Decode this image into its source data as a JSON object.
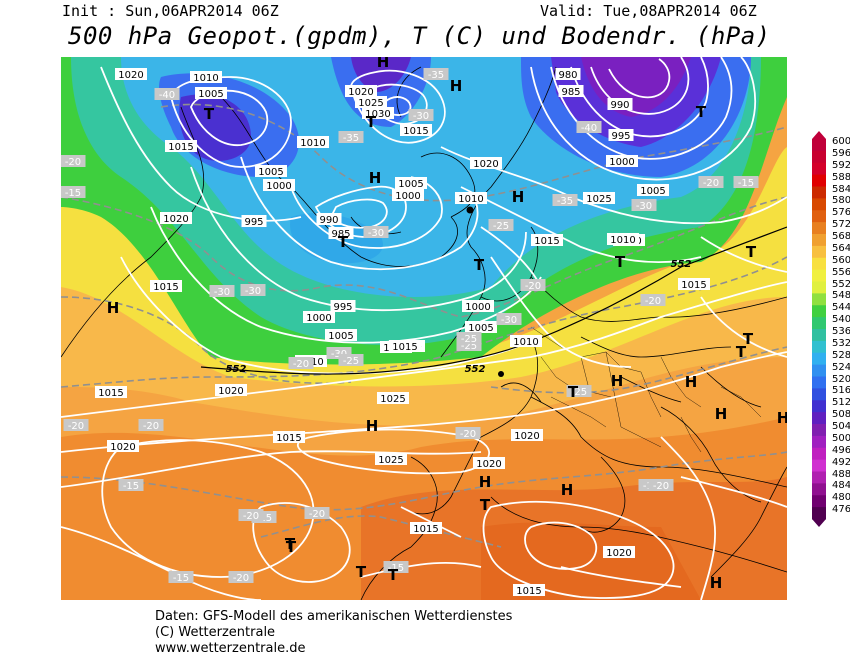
{
  "header": {
    "init": "Init : Sun,06APR2014 06Z",
    "valid": "Valid: Tue,08APR2014 06Z",
    "title": "500 hPa Geopot.(gpdm), T (C) und Bodendr. (hPa)"
  },
  "colorbar": {
    "labels": [
      "600",
      "596",
      "592",
      "588",
      "584",
      "580",
      "576",
      "572",
      "568",
      "564",
      "560",
      "556",
      "552",
      "548",
      "544",
      "540",
      "536",
      "532",
      "528",
      "524",
      "520",
      "516",
      "512",
      "508",
      "504",
      "500",
      "496",
      "492",
      "488",
      "484",
      "480",
      "476"
    ],
    "colors": [
      "#c0003a",
      "#c80030",
      "#d4002a",
      "#e00000",
      "#cc2a00",
      "#d84800",
      "#e06010",
      "#e88020",
      "#f0a030",
      "#f8c040",
      "#f8e040",
      "#f0f040",
      "#e0f040",
      "#90e040",
      "#40d040",
      "#30c870",
      "#30c0a0",
      "#30c0d0",
      "#30b0f0",
      "#3090f0",
      "#3070f0",
      "#3050e0",
      "#4030d0",
      "#6020c0",
      "#8020b0",
      "#a020c0",
      "#c020c0",
      "#d030d0",
      "#b020b0",
      "#901090",
      "#700070",
      "#500050"
    ],
    "colors_note": ""
  },
  "map": {
    "pressure_labels": [
      "1020",
      "1010",
      "1005",
      "1015",
      "1010",
      "1005",
      "1000",
      "995",
      "990",
      "985",
      "1000",
      "995",
      "1020",
      "1025",
      "1030",
      "1015",
      "1020",
      "1010",
      "1005",
      "1000",
      "1005",
      "1010",
      "1020",
      "1020",
      "980",
      "985",
      "990",
      "995",
      "1000",
      "1005",
      "1010",
      "1015",
      "1010",
      "1025",
      "1000",
      "1005",
      "1010",
      "1015",
      "1015",
      "1020",
      "1025",
      "1025",
      "1015",
      "1020",
      "1020",
      "1015",
      "1015",
      "1020",
      "1015",
      "1020",
      "1020",
      "1015"
    ],
    "temp_labels": [
      "-40",
      "-35",
      "-35",
      "-30",
      "-30",
      "-40",
      "-35",
      "-30",
      "-20",
      "-15",
      "-25",
      "-30",
      "-30",
      "-30",
      "-25",
      "-20",
      "-30",
      "-20",
      "-25",
      "-25",
      "-20",
      "-20",
      "-20",
      "-15",
      "-15",
      "-20",
      "-15",
      "-20",
      "-20",
      "-15",
      "-20",
      "-15",
      "-20",
      "-15",
      "-20",
      "-25"
    ],
    "height_labels": [
      "552",
      "552",
      "552"
    ],
    "H_marks": [
      "H",
      "H",
      "H",
      "H",
      "H",
      "H",
      "H",
      "H",
      "H",
      "H",
      "H",
      "H",
      "H"
    ],
    "T_marks": [
      "T",
      "T",
      "T",
      "T",
      "T",
      "T",
      "T",
      "T",
      "T",
      "T",
      "T",
      "T",
      "T",
      "T",
      "T"
    ]
  },
  "credits": {
    "line1": "Daten: GFS-Modell des amerikanischen Wetterdienstes",
    "line2": "(C) Wetterzentrale",
    "line3": "www.wetterzentrale.de"
  }
}
